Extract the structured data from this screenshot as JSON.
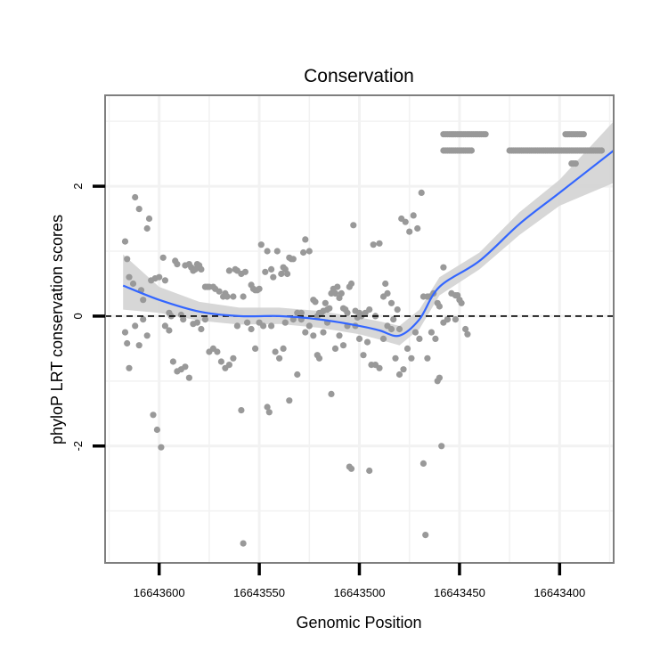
{
  "chart_data": {
    "type": "scatter",
    "title": "Conservation",
    "xlabel": "Genomic Position",
    "ylabel": "phyloP LRT conservation scores",
    "x_reversed": true,
    "xlim": [
      16643627,
      16643373
    ],
    "ylim": [
      -3.8,
      3.4
    ],
    "x_ticks": [
      16643600,
      16643550,
      16643500,
      16643450,
      16643400
    ],
    "x_tick_labels": [
      "16643600",
      "16643550",
      "16643500",
      "16643450",
      "16643400"
    ],
    "y_ticks": [
      -2,
      0,
      2
    ],
    "y_tick_labels": [
      "-2",
      "0",
      "2"
    ],
    "grid": true,
    "reference_line": {
      "y": 0,
      "style": "dashed",
      "color": "#000000"
    },
    "colors": {
      "points": "#999999",
      "smooth": "#3366ff",
      "band": "#d3d3d3",
      "panel_border": "#7f7f7f",
      "grid": "#f2f2f2"
    },
    "points": [
      [
        16643617,
        1.15
      ],
      [
        16643616,
        0.88
      ],
      [
        16643615,
        0.6
      ],
      [
        16643613,
        0.5
      ],
      [
        16643612,
        1.83
      ],
      [
        16643610,
        1.65
      ],
      [
        16643609,
        0.4
      ],
      [
        16643608,
        0.25
      ],
      [
        16643606,
        1.35
      ],
      [
        16643605,
        1.5
      ],
      [
        16643604,
        0.55
      ],
      [
        16643602,
        0.58
      ],
      [
        16643600,
        0.6
      ],
      [
        16643598,
        0.9
      ],
      [
        16643597,
        0.55
      ],
      [
        16643595,
        0.05
      ],
      [
        16643594,
        0.0
      ],
      [
        16643592,
        0.85
      ],
      [
        16643591,
        0.8
      ],
      [
        16643589,
        0.02
      ],
      [
        16643588,
        -0.05
      ],
      [
        16643587,
        0.78
      ],
      [
        16643585,
        0.8
      ],
      [
        16643584,
        0.75
      ],
      [
        16643583,
        0.7
      ],
      [
        16643582,
        0.72
      ],
      [
        16643581,
        0.8
      ],
      [
        16643580,
        0.78
      ],
      [
        16643579,
        0.72
      ],
      [
        16643577,
        0.45
      ],
      [
        16643576,
        0.45
      ],
      [
        16643575,
        0.45
      ],
      [
        16643573,
        0.45
      ],
      [
        16643572,
        0.42
      ],
      [
        16643570,
        0.38
      ],
      [
        16643568,
        0.3
      ],
      [
        16643567,
        0.35
      ],
      [
        16643566,
        0.3
      ],
      [
        16643565,
        0.7
      ],
      [
        16643563,
        0.3
      ],
      [
        16643562,
        0.72
      ],
      [
        16643561,
        0.7
      ],
      [
        16643559,
        0.65
      ],
      [
        16643558,
        0.3
      ],
      [
        16643557,
        0.68
      ],
      [
        16643554,
        0.48
      ],
      [
        16643553,
        0.42
      ],
      [
        16643552,
        0.4
      ],
      [
        16643551,
        0.4
      ],
      [
        16643550,
        0.42
      ],
      [
        16643549,
        1.1
      ],
      [
        16643547,
        0.68
      ],
      [
        16643546,
        1.0
      ],
      [
        16643544,
        0.72
      ],
      [
        16643543,
        0.6
      ],
      [
        16643541,
        1.0
      ],
      [
        16643539,
        0.65
      ],
      [
        16643538,
        0.75
      ],
      [
        16643537,
        0.72
      ],
      [
        16643536,
        0.65
      ],
      [
        16643535,
        0.9
      ],
      [
        16643534,
        0.88
      ],
      [
        16643533,
        0.88
      ],
      [
        16643531,
        0.05
      ],
      [
        16643529,
        0.05
      ],
      [
        16643528,
        0.98
      ],
      [
        16643527,
        1.18
      ],
      [
        16643525,
        1.0
      ],
      [
        16643523,
        0.25
      ],
      [
        16643522,
        0.22
      ],
      [
        16643521,
        0.0
      ],
      [
        16643520,
        0.05
      ],
      [
        16643519,
        0.05
      ],
      [
        16643518,
        0.08
      ],
      [
        16643517,
        0.2
      ],
      [
        16643516,
        0.1
      ],
      [
        16643515,
        0.12
      ],
      [
        16643514,
        0.35
      ],
      [
        16643513,
        0.42
      ],
      [
        16643512,
        0.35
      ],
      [
        16643511,
        0.45
      ],
      [
        16643510,
        0.28
      ],
      [
        16643509,
        0.35
      ],
      [
        16643508,
        0.12
      ],
      [
        16643507,
        0.1
      ],
      [
        16643506,
        0.05
      ],
      [
        16643505,
        0.45
      ],
      [
        16643504,
        0.5
      ],
      [
        16643503,
        1.4
      ],
      [
        16643502,
        0.08
      ],
      [
        16643501,
        -0.02
      ],
      [
        16643500,
        0.05
      ],
      [
        16643499,
        0.0
      ],
      [
        16643497,
        0.05
      ],
      [
        16643495,
        0.1
      ],
      [
        16643493,
        1.1
      ],
      [
        16643492,
        0.0
      ],
      [
        16643490,
        1.12
      ],
      [
        16643488,
        0.3
      ],
      [
        16643487,
        0.5
      ],
      [
        16643486,
        0.35
      ],
      [
        16643484,
        0.2
      ],
      [
        16643483,
        -0.05
      ],
      [
        16643481,
        0.1
      ],
      [
        16643480,
        -0.2
      ],
      [
        16643479,
        1.5
      ],
      [
        16643477,
        1.45
      ],
      [
        16643475,
        1.3
      ],
      [
        16643473,
        1.55
      ],
      [
        16643471,
        1.35
      ],
      [
        16643469,
        1.9
      ],
      [
        16643468,
        0.3
      ],
      [
        16643466,
        0.3
      ],
      [
        16643465,
        0.3
      ],
      [
        16643463,
        0.35
      ],
      [
        16643461,
        0.2
      ],
      [
        16643460,
        0.15
      ],
      [
        16643458,
        0.75
      ],
      [
        16643456,
        -0.05
      ],
      [
        16643454,
        0.35
      ],
      [
        16643452,
        0.32
      ],
      [
        16643451,
        0.32
      ],
      [
        16643450,
        0.25
      ],
      [
        16643449,
        0.2
      ],
      [
        16643447,
        -0.2
      ],
      [
        16643446,
        -0.28
      ],
      [
        16643617,
        -0.25
      ],
      [
        16643616,
        -0.42
      ],
      [
        16643615,
        -0.8
      ],
      [
        16643612,
        -0.15
      ],
      [
        16643610,
        -0.45
      ],
      [
        16643608,
        -0.05
      ],
      [
        16643606,
        -0.3
      ],
      [
        16643603,
        -1.52
      ],
      [
        16643601,
        -1.75
      ],
      [
        16643599,
        -2.02
      ],
      [
        16643597,
        -0.15
      ],
      [
        16643595,
        -0.22
      ],
      [
        16643593,
        -0.7
      ],
      [
        16643591,
        -0.85
      ],
      [
        16643589,
        -0.82
      ],
      [
        16643587,
        -0.78
      ],
      [
        16643585,
        -0.95
      ],
      [
        16643583,
        -0.12
      ],
      [
        16643581,
        -0.1
      ],
      [
        16643579,
        -0.2
      ],
      [
        16643577,
        -0.05
      ],
      [
        16643575,
        -0.55
      ],
      [
        16643573,
        -0.5
      ],
      [
        16643571,
        -0.55
      ],
      [
        16643569,
        -0.7
      ],
      [
        16643567,
        -0.8
      ],
      [
        16643565,
        -0.75
      ],
      [
        16643563,
        -0.65
      ],
      [
        16643561,
        -0.15
      ],
      [
        16643559,
        -1.45
      ],
      [
        16643558,
        -3.5
      ],
      [
        16643556,
        -0.1
      ],
      [
        16643554,
        -0.2
      ],
      [
        16643552,
        -0.5
      ],
      [
        16643550,
        -0.1
      ],
      [
        16643548,
        -0.15
      ],
      [
        16643546,
        -1.4
      ],
      [
        16643545,
        -1.48
      ],
      [
        16643544,
        -0.15
      ],
      [
        16643542,
        -0.55
      ],
      [
        16643540,
        -0.65
      ],
      [
        16643538,
        -0.5
      ],
      [
        16643537,
        -0.1
      ],
      [
        16643535,
        -1.3
      ],
      [
        16643533,
        -0.05
      ],
      [
        16643531,
        -0.9
      ],
      [
        16643529,
        -0.05
      ],
      [
        16643527,
        -0.25
      ],
      [
        16643525,
        -0.15
      ],
      [
        16643523,
        -0.3
      ],
      [
        16643521,
        -0.6
      ],
      [
        16643520,
        -0.65
      ],
      [
        16643518,
        -0.25
      ],
      [
        16643516,
        -0.1
      ],
      [
        16643514,
        -1.2
      ],
      [
        16643512,
        -0.5
      ],
      [
        16643510,
        -0.3
      ],
      [
        16643508,
        -0.45
      ],
      [
        16643506,
        -0.15
      ],
      [
        16643505,
        -2.32
      ],
      [
        16643504,
        -2.35
      ],
      [
        16643502,
        -0.15
      ],
      [
        16643500,
        -0.35
      ],
      [
        16643498,
        -0.6
      ],
      [
        16643496,
        -0.4
      ],
      [
        16643495,
        -2.38
      ],
      [
        16643494,
        -0.75
      ],
      [
        16643492,
        -0.75
      ],
      [
        16643490,
        -0.8
      ],
      [
        16643488,
        -0.35
      ],
      [
        16643486,
        -0.15
      ],
      [
        16643484,
        -0.2
      ],
      [
        16643482,
        -0.65
      ],
      [
        16643480,
        -0.9
      ],
      [
        16643478,
        -0.82
      ],
      [
        16643476,
        -0.5
      ],
      [
        16643474,
        -0.65
      ],
      [
        16643472,
        -0.25
      ],
      [
        16643470,
        -0.35
      ],
      [
        16643468,
        -2.27
      ],
      [
        16643467,
        -3.37
      ],
      [
        16643466,
        -0.65
      ],
      [
        16643464,
        -0.25
      ],
      [
        16643462,
        -0.35
      ],
      [
        16643461,
        -1.0
      ],
      [
        16643460,
        -0.95
      ],
      [
        16643459,
        -2.0
      ],
      [
        16643458,
        -0.1
      ],
      [
        16643456,
        -0.05
      ],
      [
        16643452,
        -0.05
      ]
    ],
    "top_clusters": [
      {
        "y": 2.8,
        "x_from": 16643458,
        "x_to": 16643437
      },
      {
        "y": 2.55,
        "x_from": 16643458,
        "x_to": 16643444
      },
      {
        "y": 2.55,
        "x_from": 16643425,
        "x_to": 16643379
      },
      {
        "y": 2.8,
        "x_from": 16643397,
        "x_to": 16643388
      },
      {
        "y": 2.35,
        "x_from": 16643394,
        "x_to": 16643392
      }
    ],
    "smooth": {
      "x": [
        16643618,
        16643600,
        16643580,
        16643560,
        16643540,
        16643520,
        16643500,
        16643490,
        16643480,
        16643470,
        16643460,
        16643440,
        16643420,
        16643400,
        16643373
      ],
      "y": [
        0.47,
        0.25,
        0.07,
        0.0,
        0.0,
        -0.05,
        -0.15,
        -0.22,
        -0.3,
        -0.05,
        0.45,
        0.85,
        1.42,
        1.9,
        2.55
      ],
      "lower": [
        0.1,
        0.05,
        -0.07,
        -0.13,
        -0.12,
        -0.18,
        -0.28,
        -0.36,
        -0.45,
        -0.2,
        0.32,
        0.72,
        1.25,
        1.7,
        2.05
      ],
      "upper": [
        0.95,
        0.45,
        0.22,
        0.13,
        0.13,
        0.08,
        -0.02,
        -0.08,
        -0.15,
        0.1,
        0.6,
        0.98,
        1.6,
        2.1,
        3.0
      ]
    }
  }
}
